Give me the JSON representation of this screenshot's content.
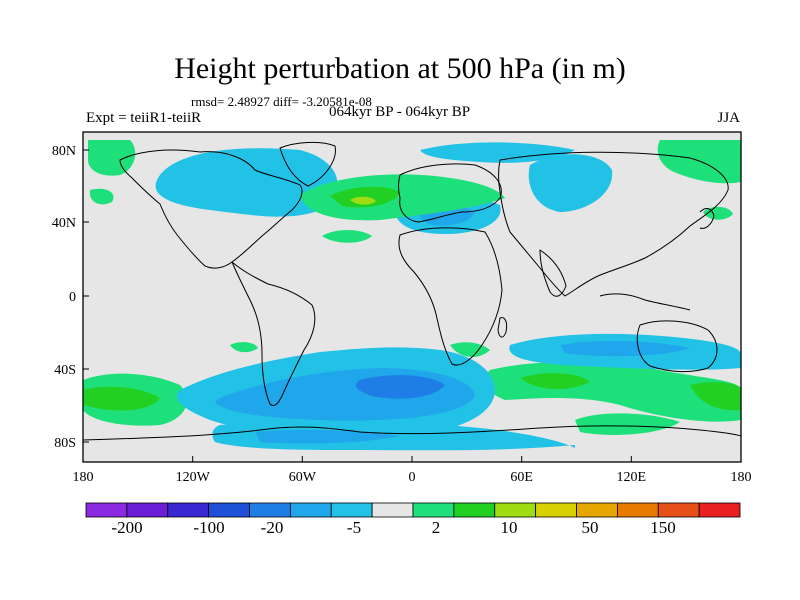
{
  "figure": {
    "title": "Height perturbation at 500 hPa (in m)",
    "stats_line": "rmsd= 2.48927 diff= -3.20581e-08",
    "experiment": "Expt = teiiR1-teiiR",
    "period": "064kyr BP - 064kyr BP",
    "season": "JJA"
  },
  "axes": {
    "lon_ticks": [
      "180",
      "120W",
      "60W",
      "0",
      "60E",
      "120E",
      "180"
    ],
    "lat_ticks": [
      "80N",
      "40N",
      "0",
      "40S",
      "80S"
    ],
    "lon_range": [
      -180,
      180
    ],
    "lat_range": [
      -90,
      90
    ]
  },
  "colorbar": {
    "colors": [
      "#8a2be2",
      "#6a1fd6",
      "#3a28d2",
      "#1e50d8",
      "#1e7ee6",
      "#20a6ea",
      "#22c2e6",
      "#e6e6e6",
      "#1ee07a",
      "#22d024",
      "#a0dc14",
      "#d8d000",
      "#e6a800",
      "#e87a00",
      "#e8501a",
      "#e82020"
    ],
    "labels": [
      "-200",
      "-100",
      "-20",
      "-5",
      "2",
      "10",
      "50",
      "150"
    ]
  },
  "field_colors": {
    "background": "#e6e6e6",
    "light_blue": "#22c2e6",
    "mid_blue": "#20a6ea",
    "blue": "#1e7ee6",
    "light_green": "#1ee07a",
    "green": "#22d024",
    "yellow_green": "#a0dc14"
  }
}
